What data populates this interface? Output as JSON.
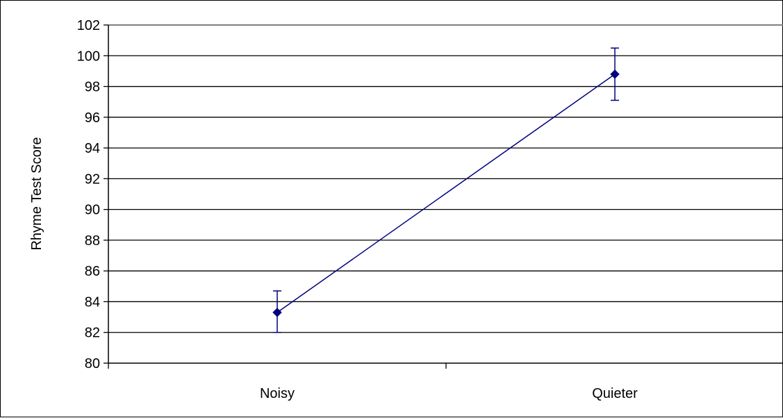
{
  "chart_data": {
    "type": "line",
    "title": "",
    "xlabel": "",
    "ylabel": "Rhyme Test Score",
    "categories": [
      "Noisy",
      "Quieter"
    ],
    "series": [
      {
        "values": [
          83.3,
          98.8
        ],
        "error_upper": [
          84.7,
          100.5
        ],
        "error_lower": [
          82.0,
          97.1
        ],
        "color": "#000080",
        "marker": "diamond"
      }
    ],
    "ylim": [
      80,
      102
    ],
    "yticks": [
      "80",
      "82",
      "84",
      "86",
      "88",
      "90",
      "92",
      "94",
      "96",
      "98",
      "100",
      "102"
    ],
    "grid": true,
    "legend": "none"
  }
}
